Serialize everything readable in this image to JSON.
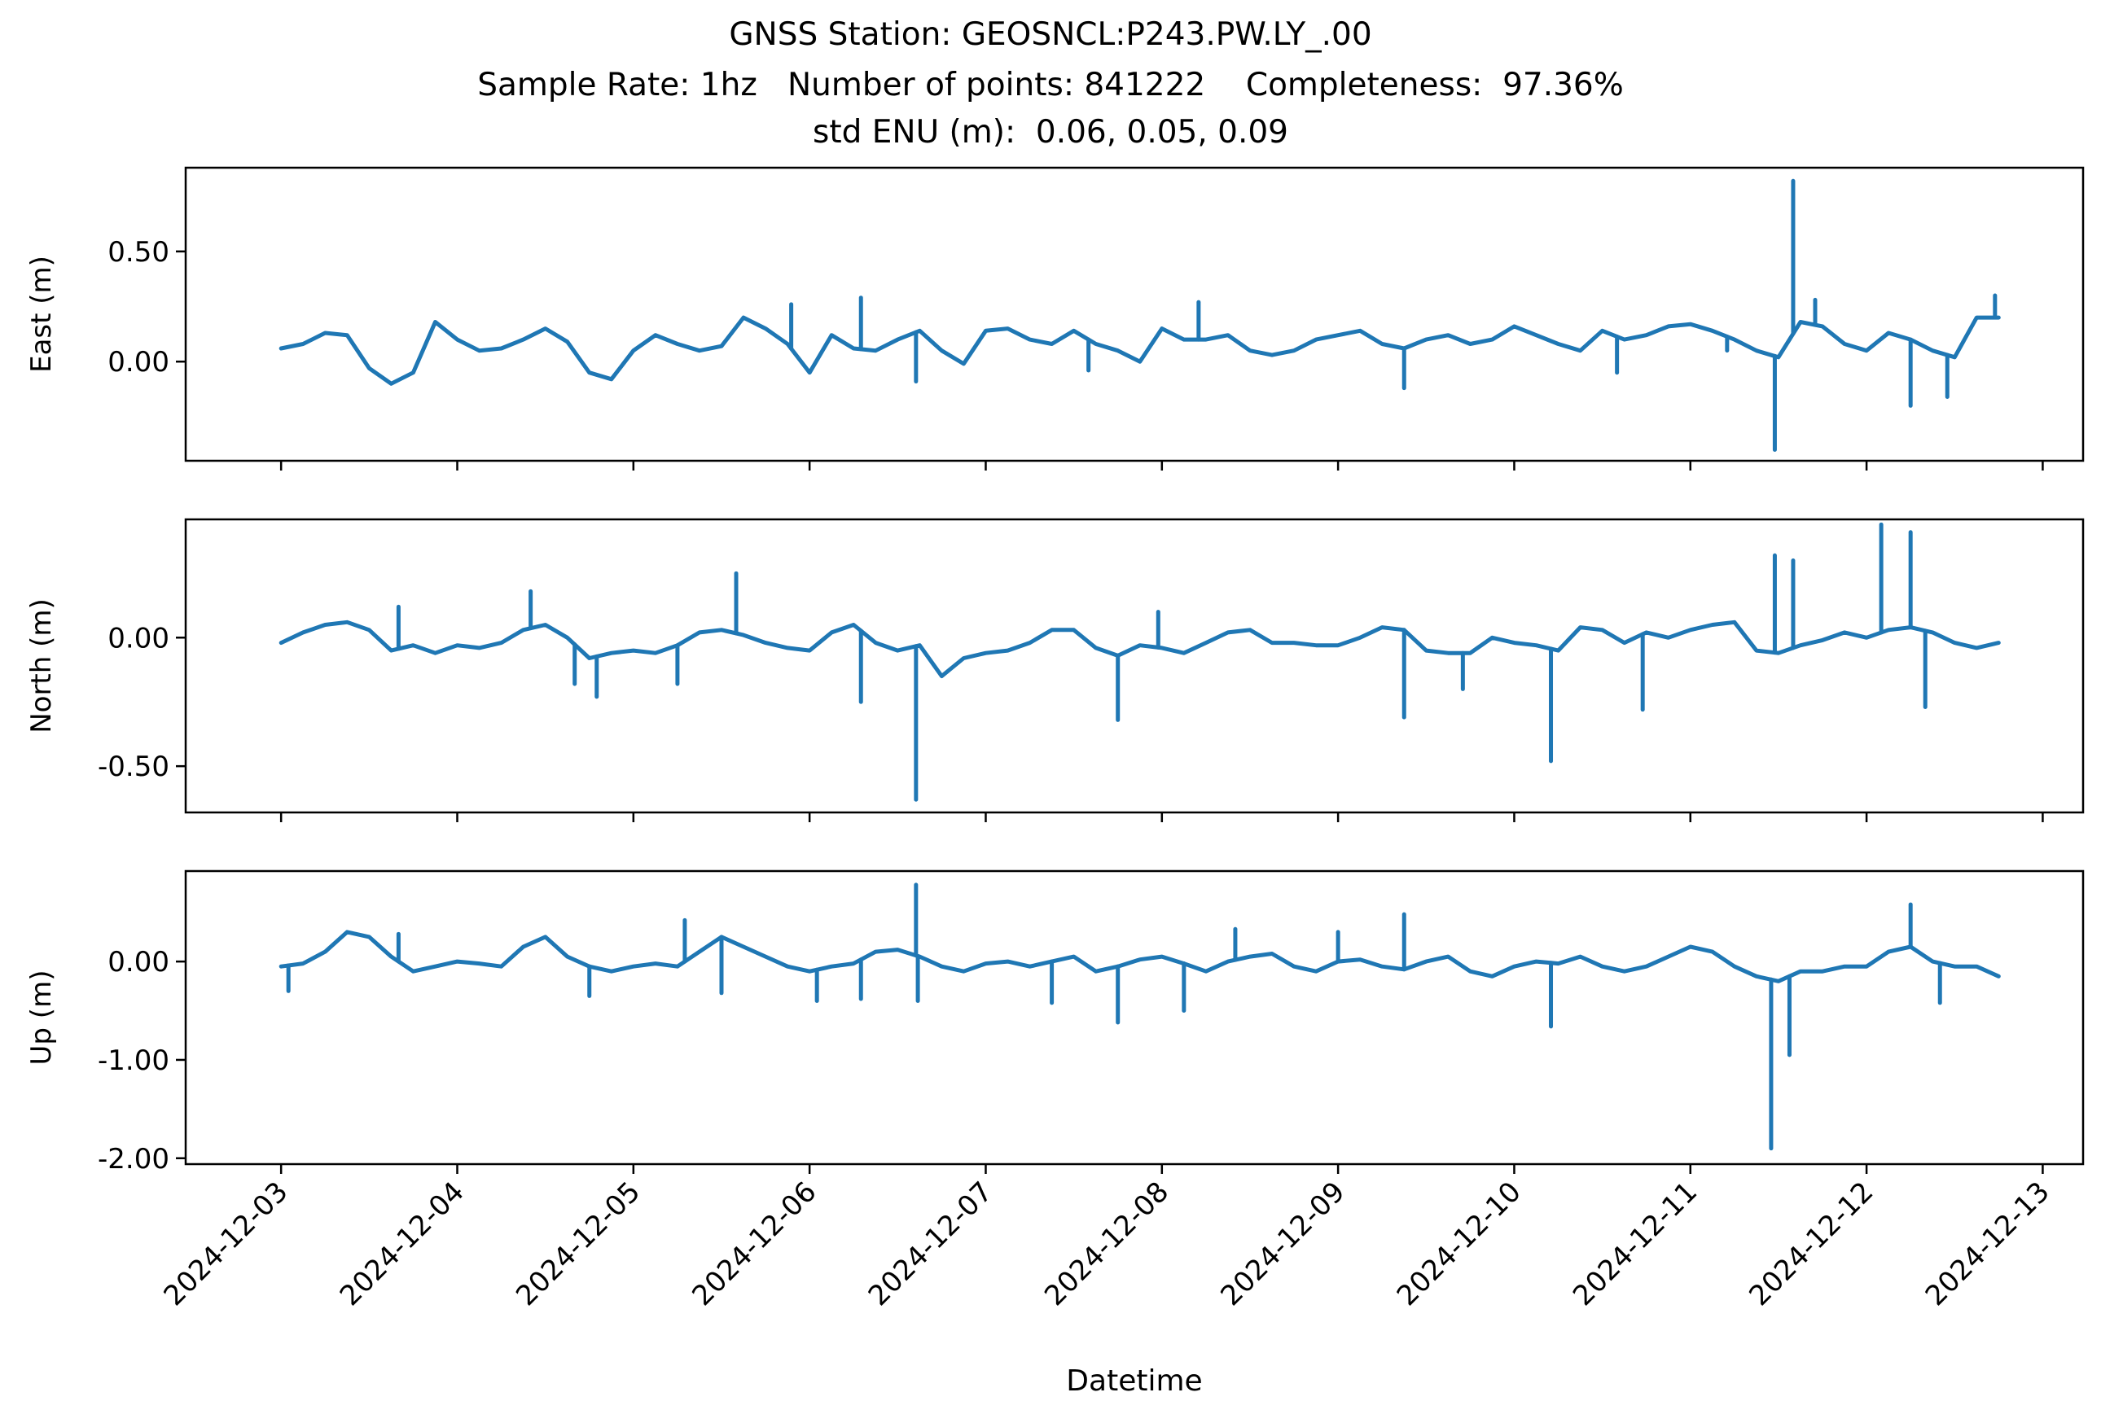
{
  "title": {
    "line1": "GNSS Station: GEOSNCL:P243.PW.LY_.00",
    "line2": "Sample Rate: 1hz   Number of points: 841222    Completeness:  97.36%",
    "line3": "std ENU (m):  0.06, 0.05, 0.09"
  },
  "xlabel": "Datetime",
  "x_tick_labels": [
    "2024-12-03",
    "2024-12-04",
    "2024-12-05",
    "2024-12-06",
    "2024-12-07",
    "2024-12-08",
    "2024-12-09",
    "2024-12-10",
    "2024-12-11",
    "2024-12-12",
    "2024-12-13"
  ],
  "chart_data": [
    {
      "type": "line",
      "name": "East",
      "ylabel": "East (m)",
      "xlim": [
        "2024-12-02T11:00",
        "2024-12-13T05:30"
      ],
      "ylim": [
        -0.45,
        0.88
      ],
      "yticks": [
        0.0,
        0.5
      ],
      "ytick_labels": [
        "0.00",
        "0.50"
      ],
      "color": "#1f77b4",
      "x": [
        "2024-12-03T00:00",
        "2024-12-03T03:00",
        "2024-12-03T06:00",
        "2024-12-03T09:00",
        "2024-12-03T12:00",
        "2024-12-03T15:00",
        "2024-12-03T18:00",
        "2024-12-03T21:00",
        "2024-12-04T00:00",
        "2024-12-04T03:00",
        "2024-12-04T06:00",
        "2024-12-04T09:00",
        "2024-12-04T12:00",
        "2024-12-04T15:00",
        "2024-12-04T18:00",
        "2024-12-04T21:00",
        "2024-12-05T00:00",
        "2024-12-05T03:00",
        "2024-12-05T06:00",
        "2024-12-05T09:00",
        "2024-12-05T12:00",
        "2024-12-05T15:00",
        "2024-12-05T18:00",
        "2024-12-05T21:00",
        "2024-12-06T00:00",
        "2024-12-06T03:00",
        "2024-12-06T06:00",
        "2024-12-06T09:00",
        "2024-12-06T12:00",
        "2024-12-06T15:00",
        "2024-12-06T18:00",
        "2024-12-06T21:00",
        "2024-12-07T00:00",
        "2024-12-07T03:00",
        "2024-12-07T06:00",
        "2024-12-07T09:00",
        "2024-12-07T12:00",
        "2024-12-07T15:00",
        "2024-12-07T18:00",
        "2024-12-07T21:00",
        "2024-12-08T00:00",
        "2024-12-08T03:00",
        "2024-12-08T06:00",
        "2024-12-08T09:00",
        "2024-12-08T12:00",
        "2024-12-08T15:00",
        "2024-12-08T18:00",
        "2024-12-08T21:00",
        "2024-12-09T00:00",
        "2024-12-09T03:00",
        "2024-12-09T06:00",
        "2024-12-09T09:00",
        "2024-12-09T12:00",
        "2024-12-09T15:00",
        "2024-12-09T18:00",
        "2024-12-09T21:00",
        "2024-12-10T00:00",
        "2024-12-10T03:00",
        "2024-12-10T06:00",
        "2024-12-10T09:00",
        "2024-12-10T12:00",
        "2024-12-10T15:00",
        "2024-12-10T18:00",
        "2024-12-10T21:00",
        "2024-12-11T00:00",
        "2024-12-11T03:00",
        "2024-12-11T06:00",
        "2024-12-11T09:00",
        "2024-12-11T12:00",
        "2024-12-11T15:00",
        "2024-12-11T18:00",
        "2024-12-11T21:00",
        "2024-12-12T00:00",
        "2024-12-12T03:00",
        "2024-12-12T06:00",
        "2024-12-12T09:00",
        "2024-12-12T12:00",
        "2024-12-12T15:00",
        "2024-12-12T18:00"
      ],
      "y": [
        0.06,
        0.08,
        0.13,
        0.12,
        -0.03,
        -0.1,
        -0.05,
        0.18,
        0.1,
        0.05,
        0.06,
        0.1,
        0.15,
        0.09,
        -0.05,
        -0.08,
        0.05,
        0.12,
        0.08,
        0.05,
        0.07,
        0.2,
        0.15,
        0.08,
        -0.05,
        0.12,
        0.06,
        0.05,
        0.1,
        0.14,
        0.05,
        -0.01,
        0.14,
        0.15,
        0.1,
        0.08,
        0.14,
        0.08,
        0.05,
        0.0,
        0.15,
        0.1,
        0.1,
        0.12,
        0.05,
        0.03,
        0.05,
        0.1,
        0.12,
        0.14,
        0.08,
        0.06,
        0.1,
        0.12,
        0.08,
        0.1,
        0.16,
        0.12,
        0.08,
        0.05,
        0.14,
        0.1,
        0.12,
        0.16,
        0.17,
        0.14,
        0.1,
        0.05,
        0.02,
        0.18,
        0.16,
        0.08,
        0.05,
        0.13,
        0.1,
        0.05,
        0.02,
        0.2,
        0.2
      ],
      "spikes": [
        {
          "x": "2024-12-05T21:30",
          "y": 0.26
        },
        {
          "x": "2024-12-06T07:00",
          "y": 0.29
        },
        {
          "x": "2024-12-06T14:30",
          "y": -0.09
        },
        {
          "x": "2024-12-07T14:00",
          "y": -0.04
        },
        {
          "x": "2024-12-08T05:00",
          "y": 0.27
        },
        {
          "x": "2024-12-09T09:00",
          "y": -0.12
        },
        {
          "x": "2024-12-10T14:00",
          "y": -0.05
        },
        {
          "x": "2024-12-11T05:00",
          "y": 0.05
        },
        {
          "x": "2024-12-11T17:00",
          "y": 0.28
        },
        {
          "x": "2024-12-11T11:30",
          "y": -0.4
        },
        {
          "x": "2024-12-11T14:00",
          "y": 0.82
        },
        {
          "x": "2024-12-12T11:00",
          "y": -0.16
        },
        {
          "x": "2024-12-12T06:00",
          "y": -0.2
        },
        {
          "x": "2024-12-12T17:30",
          "y": 0.3
        }
      ]
    },
    {
      "type": "line",
      "name": "North",
      "ylabel": "North (m)",
      "xlim": [
        "2024-12-02T11:00",
        "2024-12-13T05:30"
      ],
      "ylim": [
        -0.68,
        0.46
      ],
      "yticks": [
        0.0,
        -0.5
      ],
      "ytick_labels": [
        "0.00",
        "-0.50"
      ],
      "color": "#1f77b4",
      "x": [
        "2024-12-03T00:00",
        "2024-12-03T03:00",
        "2024-12-03T06:00",
        "2024-12-03T09:00",
        "2024-12-03T12:00",
        "2024-12-03T15:00",
        "2024-12-03T18:00",
        "2024-12-03T21:00",
        "2024-12-04T00:00",
        "2024-12-04T03:00",
        "2024-12-04T06:00",
        "2024-12-04T09:00",
        "2024-12-04T12:00",
        "2024-12-04T15:00",
        "2024-12-04T18:00",
        "2024-12-04T21:00",
        "2024-12-05T00:00",
        "2024-12-05T03:00",
        "2024-12-05T06:00",
        "2024-12-05T09:00",
        "2024-12-05T12:00",
        "2024-12-05T15:00",
        "2024-12-05T18:00",
        "2024-12-05T21:00",
        "2024-12-06T00:00",
        "2024-12-06T03:00",
        "2024-12-06T06:00",
        "2024-12-06T09:00",
        "2024-12-06T12:00",
        "2024-12-06T15:00",
        "2024-12-06T18:00",
        "2024-12-06T21:00",
        "2024-12-07T00:00",
        "2024-12-07T03:00",
        "2024-12-07T06:00",
        "2024-12-07T09:00",
        "2024-12-07T12:00",
        "2024-12-07T15:00",
        "2024-12-07T18:00",
        "2024-12-07T21:00",
        "2024-12-08T00:00",
        "2024-12-08T03:00",
        "2024-12-08T06:00",
        "2024-12-08T09:00",
        "2024-12-08T12:00",
        "2024-12-08T15:00",
        "2024-12-08T18:00",
        "2024-12-08T21:00",
        "2024-12-09T00:00",
        "2024-12-09T03:00",
        "2024-12-09T06:00",
        "2024-12-09T09:00",
        "2024-12-09T12:00",
        "2024-12-09T15:00",
        "2024-12-09T18:00",
        "2024-12-09T21:00",
        "2024-12-10T00:00",
        "2024-12-10T03:00",
        "2024-12-10T06:00",
        "2024-12-10T09:00",
        "2024-12-10T12:00",
        "2024-12-10T15:00",
        "2024-12-10T18:00",
        "2024-12-10T21:00",
        "2024-12-11T00:00",
        "2024-12-11T03:00",
        "2024-12-11T06:00",
        "2024-12-11T09:00",
        "2024-12-11T12:00",
        "2024-12-11T15:00",
        "2024-12-11T18:00",
        "2024-12-11T21:00",
        "2024-12-12T00:00",
        "2024-12-12T03:00",
        "2024-12-12T06:00",
        "2024-12-12T09:00",
        "2024-12-12T12:00",
        "2024-12-12T15:00",
        "2024-12-12T18:00"
      ],
      "y": [
        -0.02,
        0.02,
        0.05,
        0.06,
        0.03,
        -0.05,
        -0.03,
        -0.06,
        -0.03,
        -0.04,
        -0.02,
        0.03,
        0.05,
        0.0,
        -0.08,
        -0.06,
        -0.05,
        -0.06,
        -0.03,
        0.02,
        0.03,
        0.01,
        -0.02,
        -0.04,
        -0.05,
        0.02,
        0.05,
        -0.02,
        -0.05,
        -0.03,
        -0.15,
        -0.08,
        -0.06,
        -0.05,
        -0.02,
        0.03,
        0.03,
        -0.04,
        -0.07,
        -0.03,
        -0.04,
        -0.06,
        -0.02,
        0.02,
        0.03,
        -0.02,
        -0.02,
        -0.03,
        -0.03,
        0.0,
        0.04,
        0.03,
        -0.05,
        -0.06,
        -0.06,
        0.0,
        -0.02,
        -0.03,
        -0.05,
        0.04,
        0.03,
        -0.02,
        0.02,
        0.0,
        0.03,
        0.05,
        0.06,
        -0.05,
        -0.06,
        -0.03,
        -0.01,
        0.02,
        0.0,
        0.03,
        0.04,
        0.02,
        -0.02,
        -0.04,
        -0.02
      ],
      "spikes": [
        {
          "x": "2024-12-03T16:00",
          "y": 0.12
        },
        {
          "x": "2024-12-04T10:00",
          "y": 0.18
        },
        {
          "x": "2024-12-04T16:00",
          "y": -0.18
        },
        {
          "x": "2024-12-04T19:00",
          "y": -0.23
        },
        {
          "x": "2024-12-05T06:00",
          "y": -0.18
        },
        {
          "x": "2024-12-05T14:00",
          "y": 0.25
        },
        {
          "x": "2024-12-06T07:00",
          "y": -0.25
        },
        {
          "x": "2024-12-06T14:30",
          "y": -0.63
        },
        {
          "x": "2024-12-07T18:00",
          "y": -0.32
        },
        {
          "x": "2024-12-07T23:30",
          "y": 0.1
        },
        {
          "x": "2024-12-09T09:00",
          "y": -0.31
        },
        {
          "x": "2024-12-09T17:00",
          "y": -0.2
        },
        {
          "x": "2024-12-10T05:00",
          "y": -0.48
        },
        {
          "x": "2024-12-10T17:30",
          "y": -0.28
        },
        {
          "x": "2024-12-11T11:30",
          "y": 0.32
        },
        {
          "x": "2024-12-11T14:00",
          "y": 0.3
        },
        {
          "x": "2024-12-12T02:00",
          "y": 0.44
        },
        {
          "x": "2024-12-12T06:00",
          "y": 0.41
        },
        {
          "x": "2024-12-12T08:00",
          "y": -0.27
        }
      ]
    },
    {
      "type": "line",
      "name": "Up",
      "ylabel": "Up (m)",
      "xlim": [
        "2024-12-02T11:00",
        "2024-12-13T05:30"
      ],
      "ylim": [
        -2.06,
        0.92
      ],
      "yticks": [
        0.0,
        -1.0,
        -2.0
      ],
      "ytick_labels": [
        "0.00",
        "-1.00",
        "-2.00"
      ],
      "color": "#1f77b4",
      "x": [
        "2024-12-03T00:00",
        "2024-12-03T03:00",
        "2024-12-03T06:00",
        "2024-12-03T09:00",
        "2024-12-03T12:00",
        "2024-12-03T15:00",
        "2024-12-03T18:00",
        "2024-12-03T21:00",
        "2024-12-04T00:00",
        "2024-12-04T03:00",
        "2024-12-04T06:00",
        "2024-12-04T09:00",
        "2024-12-04T12:00",
        "2024-12-04T15:00",
        "2024-12-04T18:00",
        "2024-12-04T21:00",
        "2024-12-05T00:00",
        "2024-12-05T03:00",
        "2024-12-05T06:00",
        "2024-12-05T09:00",
        "2024-12-05T12:00",
        "2024-12-05T15:00",
        "2024-12-05T18:00",
        "2024-12-05T21:00",
        "2024-12-06T00:00",
        "2024-12-06T03:00",
        "2024-12-06T06:00",
        "2024-12-06T09:00",
        "2024-12-06T12:00",
        "2024-12-06T15:00",
        "2024-12-06T18:00",
        "2024-12-06T21:00",
        "2024-12-07T00:00",
        "2024-12-07T03:00",
        "2024-12-07T06:00",
        "2024-12-07T09:00",
        "2024-12-07T12:00",
        "2024-12-07T15:00",
        "2024-12-07T18:00",
        "2024-12-07T21:00",
        "2024-12-08T00:00",
        "2024-12-08T03:00",
        "2024-12-08T06:00",
        "2024-12-08T09:00",
        "2024-12-08T12:00",
        "2024-12-08T15:00",
        "2024-12-08T18:00",
        "2024-12-08T21:00",
        "2024-12-09T00:00",
        "2024-12-09T03:00",
        "2024-12-09T06:00",
        "2024-12-09T09:00",
        "2024-12-09T12:00",
        "2024-12-09T15:00",
        "2024-12-09T18:00",
        "2024-12-09T21:00",
        "2024-12-10T00:00",
        "2024-12-10T03:00",
        "2024-12-10T06:00",
        "2024-12-10T09:00",
        "2024-12-10T12:00",
        "2024-12-10T15:00",
        "2024-12-10T18:00",
        "2024-12-10T21:00",
        "2024-12-11T00:00",
        "2024-12-11T03:00",
        "2024-12-11T06:00",
        "2024-12-11T09:00",
        "2024-12-11T12:00",
        "2024-12-11T15:00",
        "2024-12-11T18:00",
        "2024-12-11T21:00",
        "2024-12-12T00:00",
        "2024-12-12T03:00",
        "2024-12-12T06:00",
        "2024-12-12T09:00",
        "2024-12-12T12:00",
        "2024-12-12T15:00",
        "2024-12-12T18:00"
      ],
      "y": [
        -0.05,
        -0.02,
        0.1,
        0.3,
        0.25,
        0.05,
        -0.1,
        -0.05,
        0.0,
        -0.02,
        -0.05,
        0.15,
        0.25,
        0.05,
        -0.05,
        -0.1,
        -0.05,
        -0.02,
        -0.05,
        0.1,
        0.25,
        0.15,
        0.05,
        -0.05,
        -0.1,
        -0.05,
        -0.02,
        0.1,
        0.12,
        0.05,
        -0.05,
        -0.1,
        -0.02,
        0.0,
        -0.05,
        0.0,
        0.05,
        -0.1,
        -0.05,
        0.02,
        0.05,
        -0.02,
        -0.1,
        0.0,
        0.05,
        0.08,
        -0.05,
        -0.1,
        0.0,
        0.02,
        -0.05,
        -0.08,
        0.0,
        0.05,
        -0.1,
        -0.15,
        -0.05,
        0.0,
        -0.02,
        0.05,
        -0.05,
        -0.1,
        -0.05,
        0.05,
        0.15,
        0.1,
        -0.05,
        -0.15,
        -0.2,
        -0.1,
        -0.1,
        -0.05,
        -0.05,
        0.1,
        0.15,
        0.0,
        -0.05,
        -0.05,
        -0.15
      ],
      "spikes": [
        {
          "x": "2024-12-03T01:00",
          "y": -0.3
        },
        {
          "x": "2024-12-03T16:00",
          "y": 0.28
        },
        {
          "x": "2024-12-04T18:00",
          "y": -0.35
        },
        {
          "x": "2024-12-05T07:00",
          "y": 0.42
        },
        {
          "x": "2024-12-05T12:00",
          "y": -0.32
        },
        {
          "x": "2024-12-06T01:00",
          "y": -0.4
        },
        {
          "x": "2024-12-06T07:00",
          "y": -0.38
        },
        {
          "x": "2024-12-06T14:30",
          "y": 0.78
        },
        {
          "x": "2024-12-06T14:45",
          "y": -0.4
        },
        {
          "x": "2024-12-07T09:00",
          "y": -0.42
        },
        {
          "x": "2024-12-07T18:00",
          "y": -0.62
        },
        {
          "x": "2024-12-08T03:00",
          "y": -0.5
        },
        {
          "x": "2024-12-08T10:00",
          "y": 0.33
        },
        {
          "x": "2024-12-09T00:00",
          "y": 0.3
        },
        {
          "x": "2024-12-09T09:00",
          "y": 0.48
        },
        {
          "x": "2024-12-10T05:00",
          "y": -0.66
        },
        {
          "x": "2024-12-11T11:00",
          "y": -1.9
        },
        {
          "x": "2024-12-11T13:30",
          "y": -0.95
        },
        {
          "x": "2024-12-12T06:00",
          "y": 0.58
        },
        {
          "x": "2024-12-12T10:00",
          "y": -0.42
        }
      ]
    }
  ]
}
